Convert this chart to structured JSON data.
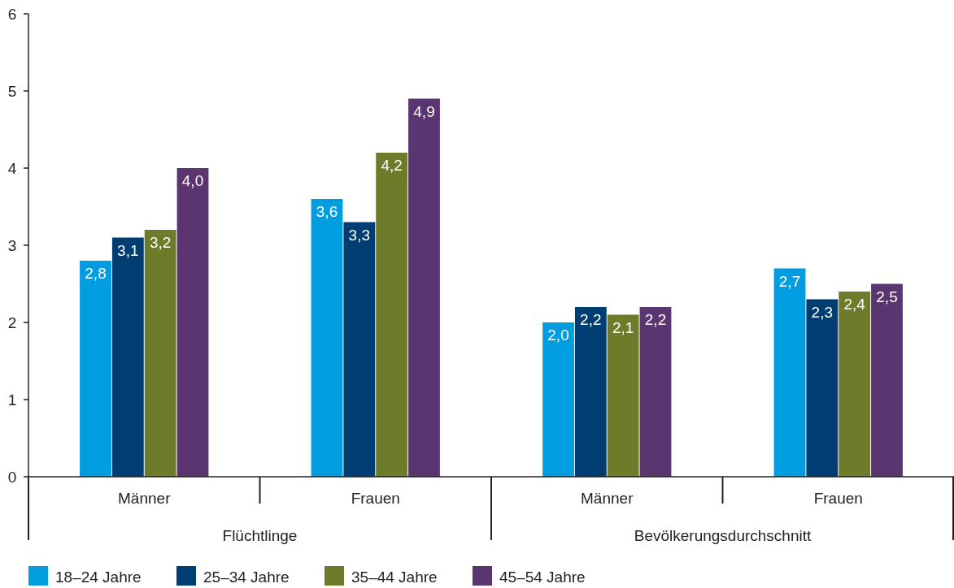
{
  "chart_data": {
    "type": "bar",
    "categories": [
      "Männer",
      "Frauen",
      "Männer",
      "Frauen"
    ],
    "annotations": [
      "Flüchtlinge",
      "Bevölkerungsdurchschnitt"
    ],
    "series": [
      {
        "name": "18–24 Jahre",
        "color": "#009ee0",
        "values": [
          2.8,
          3.6,
          2.0,
          2.7
        ],
        "value_labels": [
          "2,8",
          "3,6",
          "2,0",
          "2,7"
        ]
      },
      {
        "name": "25–34 Jahre",
        "color": "#003d73",
        "values": [
          3.1,
          3.3,
          2.2,
          2.3
        ],
        "value_labels": [
          "3,1",
          "3,3",
          "2,2",
          "2,3"
        ]
      },
      {
        "name": "35–44 Jahre",
        "color": "#6e7b2a",
        "values": [
          3.2,
          4.2,
          2.1,
          2.4
        ],
        "value_labels": [
          "3,2",
          "4,2",
          "2,1",
          "2,4"
        ]
      },
      {
        "name": "45–54 Jahre",
        "color": "#5a3570",
        "values": [
          4.0,
          4.9,
          2.2,
          2.5
        ],
        "value_labels": [
          "4,0",
          "4,9",
          "2,2",
          "2,5"
        ]
      }
    ],
    "ylim": [
      0,
      6
    ],
    "yticks": [
      0,
      1,
      2,
      3,
      4,
      5,
      6
    ],
    "grid": false,
    "legend": "bottom left"
  }
}
